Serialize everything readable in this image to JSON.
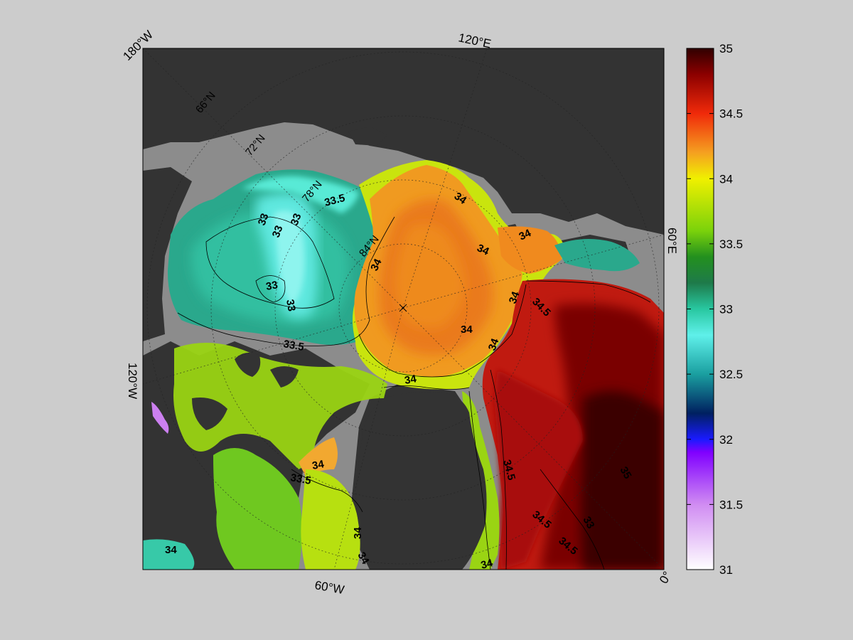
{
  "map": {
    "corner_labels": {
      "top_left": "180°W",
      "top": "120°E",
      "right": "60°E",
      "left": "120°W",
      "bottom": "60°W",
      "bottom_right": "0°"
    },
    "parallel_labels": [
      "66°N",
      "72°N",
      "78°N",
      "84°N"
    ],
    "contour_labels": [
      "33.5",
      "33",
      "33",
      "33",
      "33",
      "33",
      "34",
      "34",
      "34",
      "34",
      "34",
      "34",
      "34",
      "34.5",
      "34",
      "33.5",
      "34",
      "34",
      "33.5",
      "34.5",
      "34.5",
      "34.5",
      "34",
      "34",
      "34",
      "33",
      "35"
    ],
    "colors": {
      "land": "#333333",
      "shelf": "#8c8c8c",
      "frame_background": "#cccccc",
      "contour_line": "#000000"
    }
  },
  "colorbar": {
    "ticks": [
      "35",
      "34.5",
      "34",
      "33.5",
      "33",
      "32.5",
      "32",
      "31.5",
      "31"
    ],
    "min": 31,
    "max": 35,
    "stops": [
      {
        "v": 31.0,
        "c": "#ffffff"
      },
      {
        "v": 31.5,
        "c": "#d08cf2"
      },
      {
        "v": 31.9,
        "c": "#8000ff"
      },
      {
        "v": 32.0,
        "c": "#1a1aff"
      },
      {
        "v": 32.2,
        "c": "#002060"
      },
      {
        "v": 32.5,
        "c": "#1a9fa0"
      },
      {
        "v": 32.8,
        "c": "#5ff0ea"
      },
      {
        "v": 33.0,
        "c": "#28c7a0"
      },
      {
        "v": 33.2,
        "c": "#1e7a4a"
      },
      {
        "v": 33.4,
        "c": "#23901e"
      },
      {
        "v": 33.6,
        "c": "#7bd20b"
      },
      {
        "v": 34.0,
        "c": "#f0f000"
      },
      {
        "v": 34.2,
        "c": "#f5a020"
      },
      {
        "v": 34.5,
        "c": "#f02a0a"
      },
      {
        "v": 34.8,
        "c": "#8c0000"
      },
      {
        "v": 35.0,
        "c": "#300000"
      }
    ]
  }
}
